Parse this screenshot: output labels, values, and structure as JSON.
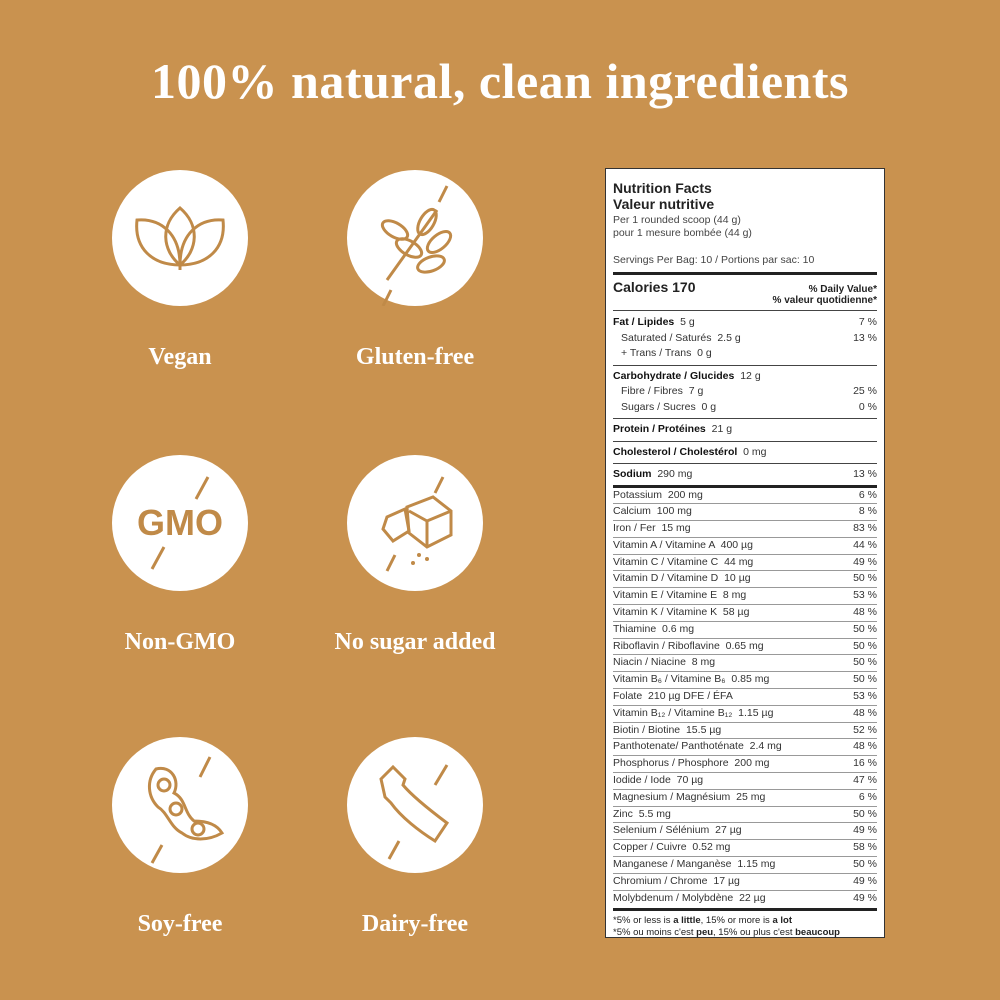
{
  "title": "100% natural, clean ingredients",
  "badges": [
    {
      "label": "Vegan"
    },
    {
      "label": "Gluten-free"
    },
    {
      "label": "Non-GMO",
      "icon_text": "GMO"
    },
    {
      "label": "No sugar added"
    },
    {
      "label": "Soy-free"
    },
    {
      "label": "Dairy-free"
    }
  ],
  "nutrition": {
    "title_en": "Nutrition Facts",
    "title_fr": "Valeur nutritive",
    "serving_en": "Per 1 rounded scoop (44 g)",
    "serving_fr": "pour 1 mesure bombée (44 g)",
    "servings": "Servings Per Bag: 10 / Portions par sac: 10",
    "calories": "Calories 170",
    "dv_en": "% Daily Value*",
    "dv_fr": "% valeur quotidienne*",
    "rows": [
      [
        "Fat / Lipides",
        "5 g",
        "7 %"
      ],
      [
        "Saturated / Saturés",
        "2.5 g",
        "13 %"
      ],
      [
        "+ Trans / Trans",
        "0 g"
      ],
      [
        "Carbohydrate / Glucides",
        "12 g"
      ],
      [
        "Fibre / Fibres",
        "7 g",
        "25 %"
      ],
      [
        "Sugars / Sucres",
        "0 g",
        "0 %"
      ],
      [
        "Protein / Protéines",
        "21 g"
      ],
      [
        "Cholesterol / Cholestérol",
        "0 mg"
      ],
      [
        "Sodium",
        "290 mg",
        "13 %"
      ],
      [
        "Potassium",
        "200 mg",
        "6 %"
      ],
      [
        "Calcium",
        "100 mg",
        "8 %"
      ],
      [
        "Iron / Fer",
        "15 mg",
        "83 %"
      ],
      [
        "Vitamin A / Vitamine A",
        "400 µg",
        "44 %"
      ],
      [
        "Vitamin C / Vitamine C",
        "44 mg",
        "49 %"
      ],
      [
        "Vitamin D / Vitamine D",
        "10 µg",
        "50 %"
      ],
      [
        "Vitamin E / Vitamine E",
        "8 mg",
        "53 %"
      ],
      [
        "Vitamin K / Vitamine K",
        "58 µg",
        "48 %"
      ],
      [
        "Thiamine",
        "0.6 mg",
        "50 %"
      ],
      [
        "Riboflavin / Riboflavine",
        "0.65 mg",
        "50 %"
      ],
      [
        "Niacin / Niacine",
        "8 mg",
        "50 %"
      ],
      [
        "Vitamin B₆ / Vitamine B₆",
        "0.85 mg",
        "50 %"
      ],
      [
        "Folate",
        "210 µg DFE / ÉFA",
        "53 %"
      ],
      [
        "Vitamin B₁₂ / Vitamine B₁₂",
        "1.15 µg",
        "48 %"
      ],
      [
        "Biotin / Biotine",
        "15.5 µg",
        "52 %"
      ],
      [
        "Panthotenate/ Panthoténate",
        "2.4 mg",
        "48 %"
      ],
      [
        "Phosphorus / Phosphore",
        "200 mg",
        "16 %"
      ],
      [
        "Iodide / Iode",
        "70 µg",
        "47 %"
      ],
      [
        "Magnesium / Magnésium",
        "25 mg",
        "6 %"
      ],
      [
        "Zinc",
        "5.5 mg",
        "50 %"
      ],
      [
        "Selenium / Sélénium",
        "27 µg",
        "49 %"
      ],
      [
        "Copper / Cuivre",
        "0.52 mg",
        "58 %"
      ],
      [
        "Manganese / Manganèse",
        "1.15 mg",
        "50 %"
      ],
      [
        "Chromium / Chrome",
        "17 µg",
        "49 %"
      ],
      [
        "Molybdenum / Molybdène",
        "22 µg",
        "49 %"
      ]
    ],
    "footnotes": [
      [
        "*5% or less is ",
        "a little",
        ", 15% or more is ",
        "a lot"
      ],
      [
        "*5% ou moins c'est ",
        "peu",
        ", 15% ou plus c'est ",
        "beaucoup"
      ]
    ]
  }
}
